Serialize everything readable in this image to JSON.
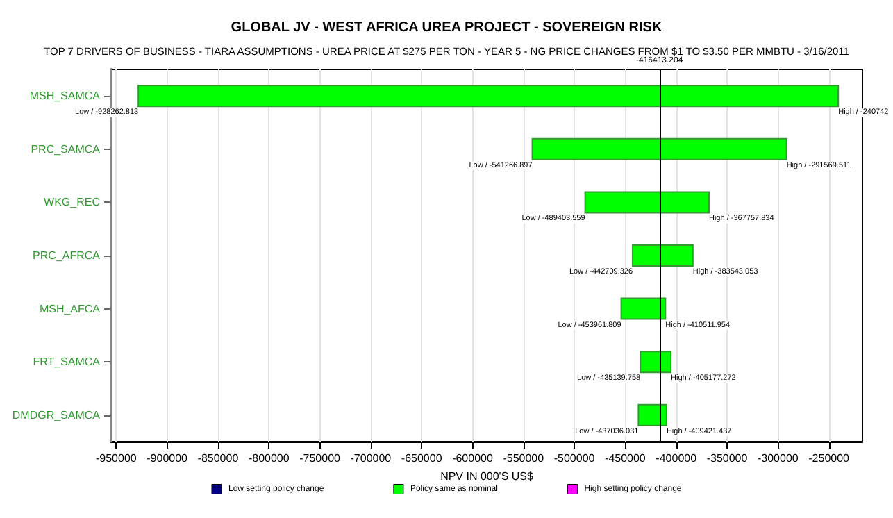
{
  "chart_data": {
    "type": "bar",
    "orientation": "horizontal",
    "title": "GLOBAL JV - WEST AFRICA UREA PROJECT - SOVEREIGN RISK",
    "subtitle": "TOP 7 DRIVERS OF BUSINESS - TIARA ASSUMPTIONS - UREA PRICE AT $275 PER TON - YEAR 5 - NG PRICE CHANGES FROM $1 TO $3.50 PER MMBTU - 3/16/2011",
    "xlabel": "NPV IN 000'S US$",
    "categories": [
      "MSH_SAMCA",
      "PRC_SAMCA",
      "WKG_REC",
      "PRC_AFRCA",
      "MSH_AFCA",
      "FRT_SAMCA",
      "DMDGR_SAMCA"
    ],
    "series": [
      {
        "name": "Low setting policy change",
        "color": "#000080",
        "values": [
          null,
          null,
          null,
          null,
          null,
          null,
          null
        ]
      },
      {
        "name": "Policy same as nominal",
        "color": "#00ff00",
        "base": [
          -928262.813,
          -541266.897,
          -489403.559,
          -442709.326,
          -453961.809,
          -435139.758,
          -437036.031
        ],
        "values": [
          687520.813,
          249697.386,
          121645.725,
          59166.273,
          43449.855,
          29962.486,
          27614.594
        ]
      },
      {
        "name": "High setting policy change",
        "color": "#ff00ff",
        "values": [
          null,
          null,
          null,
          null,
          null,
          null,
          null
        ]
      }
    ],
    "xlim": [
      -955000,
      -217000
    ],
    "xticks": [
      -950000,
      -900000,
      -850000,
      -800000,
      -750000,
      -700000,
      -650000,
      -600000,
      -550000,
      -500000,
      -450000,
      -400000,
      -350000,
      -300000,
      -250000
    ],
    "ref_lines": [
      {
        "axis": "x",
        "value": -416413.204,
        "label": "-416413.204",
        "color": "#000000"
      }
    ],
    "annotations": [
      {
        "text": "Low / -928262.813",
        "x": -928262.813,
        "y": "MSH_SAMCA"
      },
      {
        "text": "High / -240742",
        "x": -240742,
        "y": "MSH_SAMCA"
      },
      {
        "text": "Low / -541266.897",
        "x": -541266.897,
        "y": "PRC_SAMCA"
      },
      {
        "text": "High / -291569.511",
        "x": -291569.511,
        "y": "PRC_SAMCA"
      },
      {
        "text": "Low / -489403.559",
        "x": -489403.559,
        "y": "WKG_REC"
      },
      {
        "text": "High / -367757.834",
        "x": -367757.834,
        "y": "WKG_REC"
      },
      {
        "text": "Low / -442709.326",
        "x": -442709.326,
        "y": "PRC_AFRCA"
      },
      {
        "text": "High / -383543.053",
        "x": -383543.053,
        "y": "PRC_AFRCA"
      },
      {
        "text": "Low / -453961.809",
        "x": -453961.809,
        "y": "MSH_AFCA"
      },
      {
        "text": "High / -410511.954",
        "x": -410511.954,
        "y": "MSH_AFCA"
      },
      {
        "text": "Low / -435139.758",
        "x": -435139.758,
        "y": "FRT_SAMCA"
      },
      {
        "text": "High / -405177.272",
        "x": -405177.272,
        "y": "FRT_SAMCA"
      },
      {
        "text": "Low / -437036.031",
        "x": -437036.031,
        "y": "DMDGR_SAMCA"
      },
      {
        "text": "High / -409421.437",
        "x": -409421.437,
        "y": "DMDGR_SAMCA"
      }
    ],
    "grid": "x",
    "legend": "bottom"
  }
}
